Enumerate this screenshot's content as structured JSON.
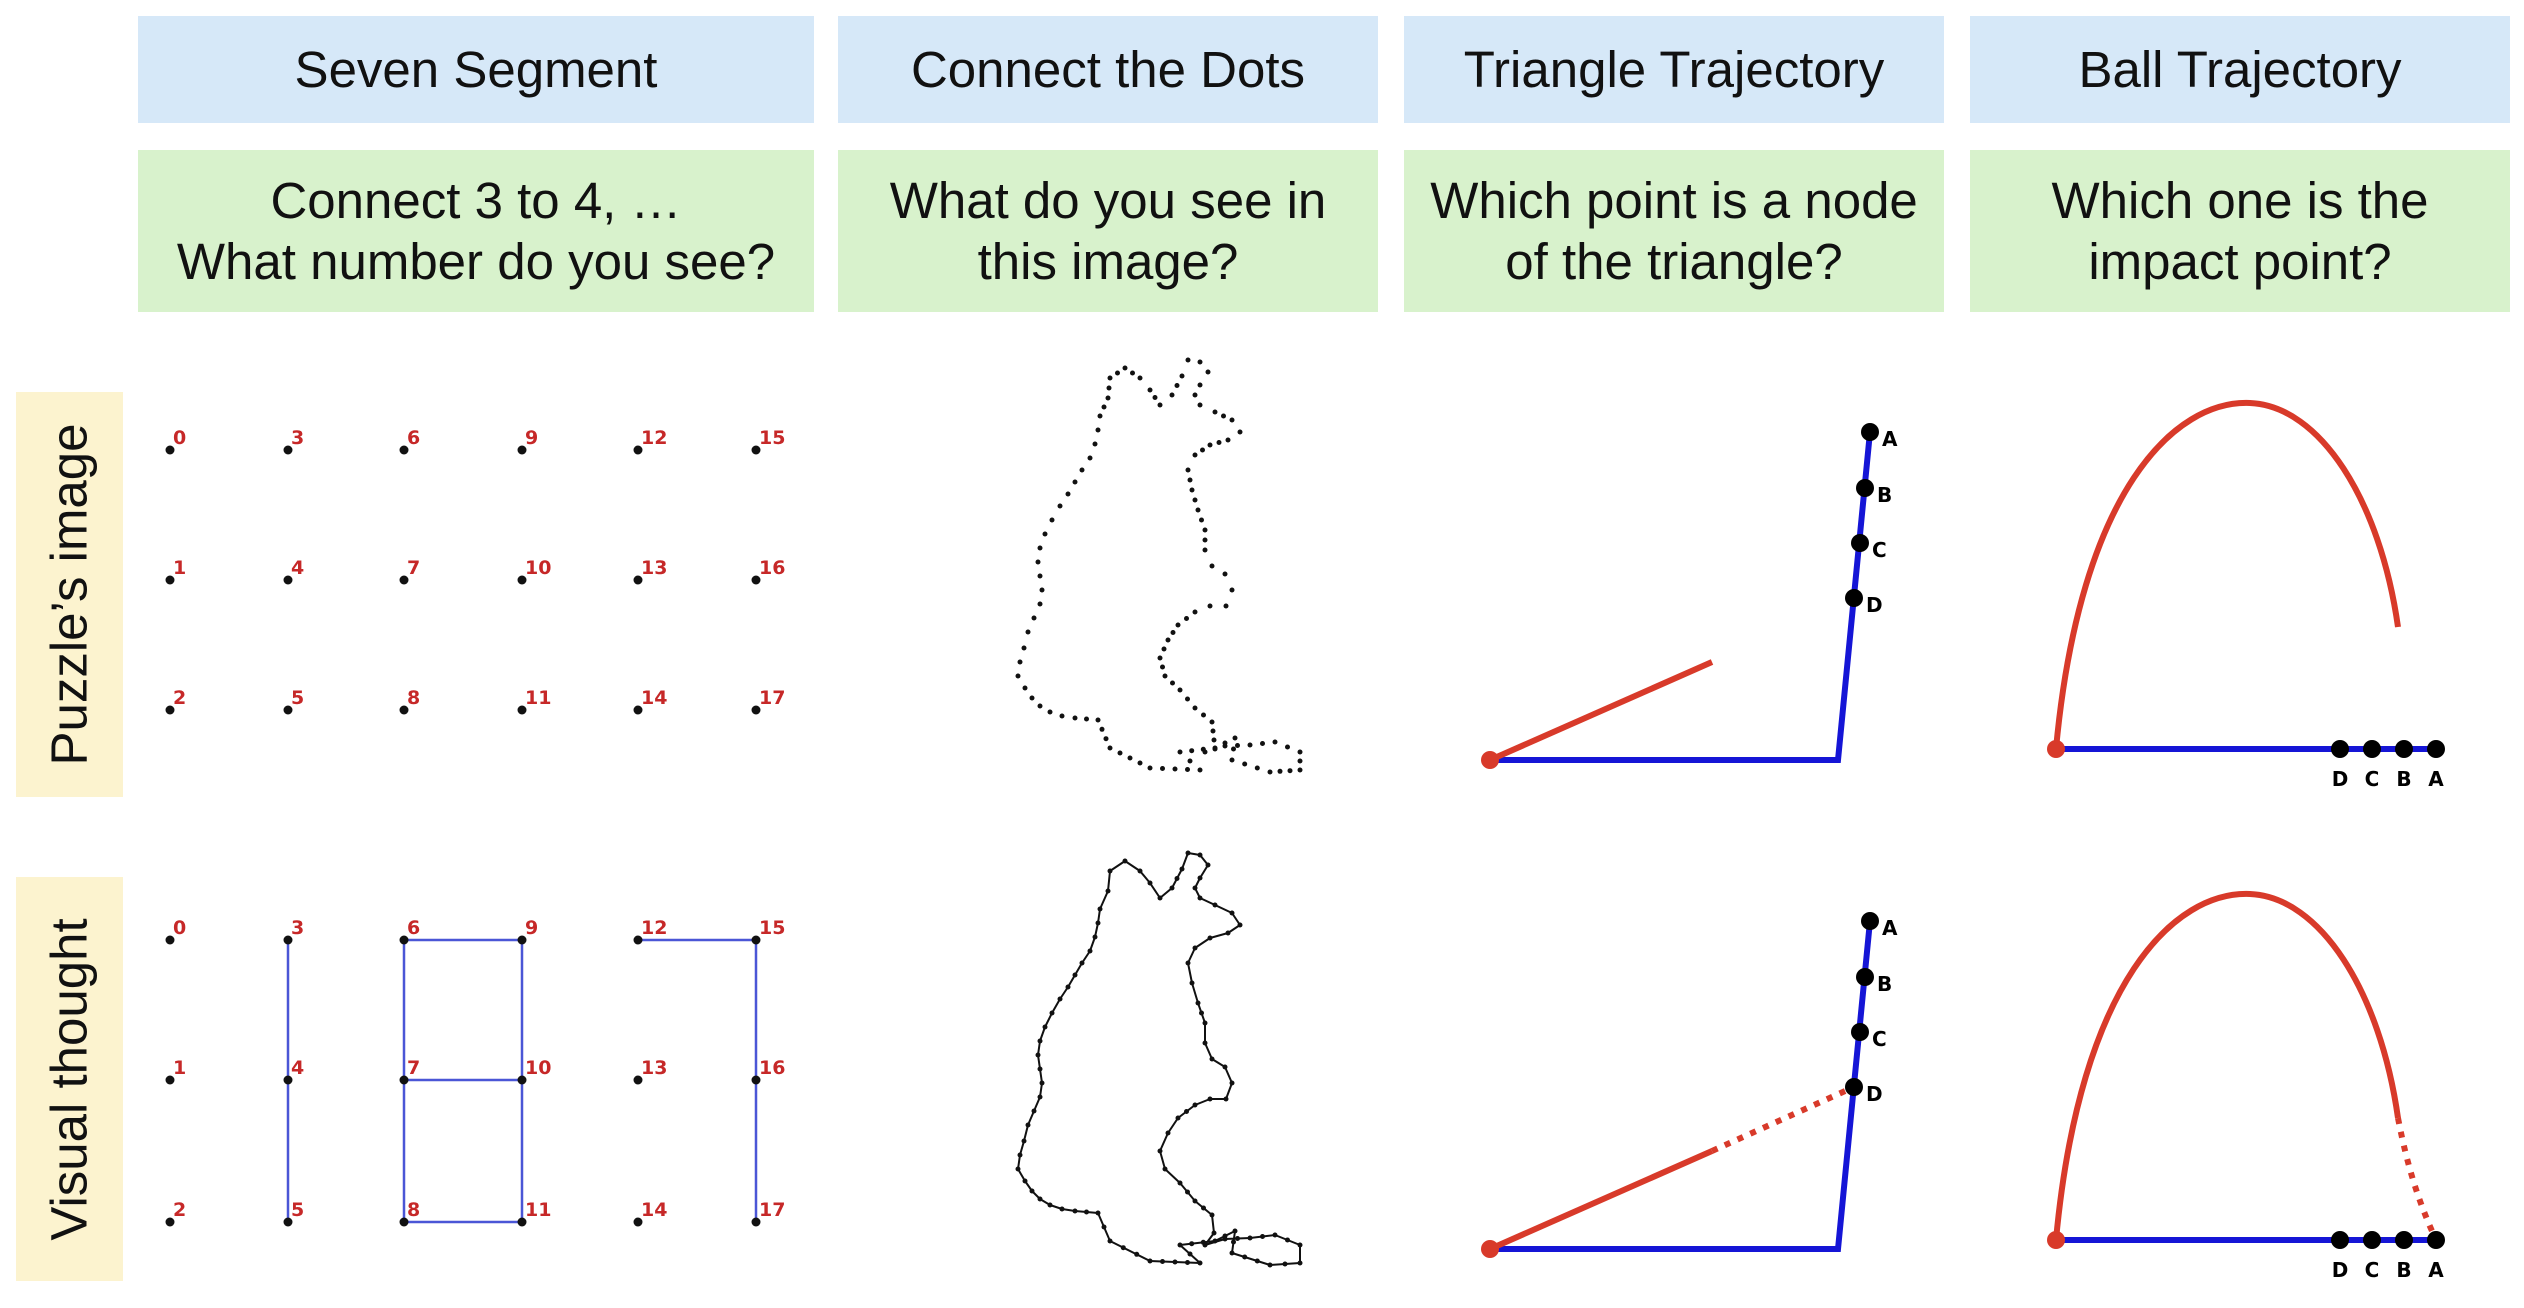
{
  "columns": [
    {
      "title": "Seven Segment",
      "question": [
        "Connect 3 to 4, …",
        "What number do you see?"
      ]
    },
    {
      "title": "Connect the Dots",
      "question": [
        "What do you see in",
        "this image?"
      ]
    },
    {
      "title": "Triangle Trajectory",
      "question": [
        "Which point is a node",
        "of the triangle?"
      ]
    },
    {
      "title": "Ball Trajectory",
      "question": [
        "Which one is the",
        "impact point?"
      ]
    }
  ],
  "rows": [
    {
      "label": "Puzzle’s image"
    },
    {
      "label": "Visual thought"
    }
  ],
  "seven_segment": {
    "dot_numbers": [
      "0",
      "1",
      "2",
      "3",
      "4",
      "5",
      "6",
      "7",
      "8",
      "9",
      "10",
      "11",
      "12",
      "13",
      "14",
      "15",
      "16",
      "17"
    ],
    "connected_pairs": [
      [
        3,
        4
      ],
      [
        4,
        5
      ],
      [
        6,
        7
      ],
      [
        7,
        8
      ],
      [
        6,
        9
      ],
      [
        9,
        10
      ],
      [
        10,
        11
      ],
      [
        8,
        11
      ],
      [
        7,
        10
      ],
      [
        12,
        15
      ],
      [
        15,
        16
      ],
      [
        16,
        17
      ]
    ]
  },
  "triangle_trajectory": {
    "point_labels": [
      "A",
      "B",
      "C",
      "D"
    ]
  },
  "ball_trajectory": {
    "point_labels": [
      "D",
      "C",
      "B",
      "A"
    ]
  },
  "colors": {
    "header_bg": "#d6e8f8",
    "question_bg": "#d8f2cc",
    "row_label_bg": "#fcf3cf",
    "number_red": "#c62828",
    "segment_blue": "#4a56d6",
    "trajectory_red": "#d83a2a",
    "line_blue": "#1515d6",
    "dot_black": "#000000"
  }
}
